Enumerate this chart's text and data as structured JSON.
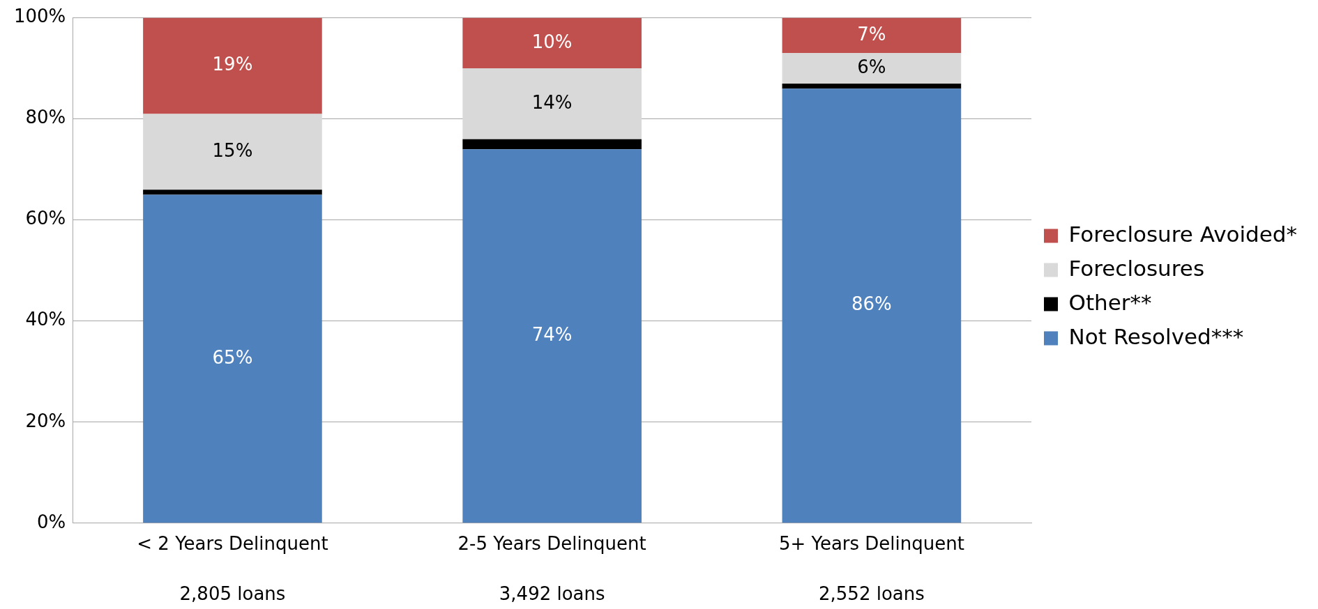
{
  "chart_data": {
    "type": "bar",
    "stacked": true,
    "categories": [
      "< 2 Years Delinquent",
      "2-5 Years Delinquent",
      "5+ Years Delinquent"
    ],
    "series": [
      {
        "name": "Not Resolved***",
        "color": "#4f81bd",
        "values": [
          65,
          74,
          86
        ],
        "value_labels": [
          "65%",
          "74%",
          "86%"
        ]
      },
      {
        "name": "Other**",
        "color": "#000000",
        "values": [
          1,
          2,
          1
        ],
        "value_labels": [
          null,
          null,
          null
        ]
      },
      {
        "name": "Foreclosures",
        "color": "#d9d9d9",
        "values": [
          15,
          14,
          6
        ],
        "value_labels": [
          "15%",
          "14%",
          "6%"
        ]
      },
      {
        "name": "Foreclosure Avoided*",
        "color": "#c0504d",
        "values": [
          19,
          10,
          7
        ],
        "value_labels": [
          "19%",
          "10%",
          "7%"
        ]
      }
    ],
    "ylim": [
      0,
      100
    ],
    "yticks": [
      {
        "value": 0,
        "label": "0%"
      },
      {
        "value": 20,
        "label": "20%"
      },
      {
        "value": 40,
        "label": "40%"
      },
      {
        "value": 60,
        "label": "60%"
      },
      {
        "value": 80,
        "label": "80%"
      },
      {
        "value": 100,
        "label": "100%"
      }
    ],
    "grid": "y",
    "legend": "right",
    "annotations": [
      "2,805 loans",
      "3,492 loans",
      "2,552 loans"
    ]
  }
}
